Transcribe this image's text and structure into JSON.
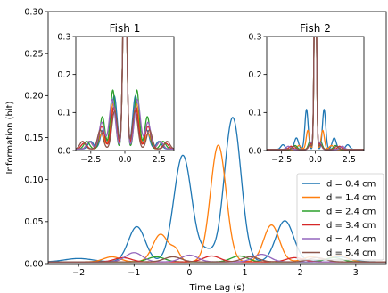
{
  "chart_data": [
    {
      "type": "line",
      "xlabel": "Time Lag (s)",
      "ylabel": "Information (bit)",
      "xlim": [
        -2.55,
        3.55
      ],
      "ylim": [
        0,
        0.3
      ],
      "xticks": [
        -2,
        -1,
        0,
        1,
        2,
        3
      ],
      "xtick_labels": [
        "−2",
        "−1",
        "0",
        "1",
        "2",
        "3"
      ],
      "yticks": [
        0,
        0.05,
        0.1,
        0.15,
        0.2,
        0.25,
        0.3
      ],
      "ytick_labels": [
        "0.00",
        "0.05",
        "0.10",
        "0.15",
        "0.20",
        "0.25",
        "0.30"
      ],
      "legend_position": "lower-right",
      "series": [
        {
          "name": "d = 0.4 cm",
          "color": "#1f77b4",
          "peaks": [
            [
              -0.95,
              0.042,
              0.15
            ],
            [
              -0.12,
              0.127,
              0.16
            ],
            [
              0.78,
              0.172,
              0.15
            ],
            [
              1.72,
              0.049,
              0.16
            ],
            [
              0.32,
              0.012,
              0.12
            ],
            [
              -2.0,
              0.004,
              0.25
            ],
            [
              2.7,
              0.006,
              0.2
            ]
          ]
        },
        {
          "name": "d = 1.4 cm",
          "color": "#ff7f0e",
          "peaks": [
            [
              -0.52,
              0.033,
              0.14
            ],
            [
              -0.25,
              0.012,
              0.08
            ],
            [
              0.52,
              0.139,
              0.14
            ],
            [
              1.48,
              0.044,
              0.14
            ],
            [
              -1.4,
              0.006,
              0.15
            ],
            [
              2.2,
              0.006,
              0.15
            ],
            [
              2.7,
              0.008,
              0.15
            ]
          ]
        },
        {
          "name": "d = 2.4 cm",
          "color": "#2ca02c",
          "peaks": [
            [
              -0.6,
              0.006,
              0.15
            ],
            [
              0.9,
              0.007,
              0.15
            ],
            [
              2.6,
              0.005,
              0.15
            ]
          ]
        },
        {
          "name": "d = 3.4 cm",
          "color": "#d62728",
          "peaks": [
            [
              -1.2,
              0.005,
              0.15
            ],
            [
              0.4,
              0.007,
              0.15
            ],
            [
              1.9,
              0.005,
              0.15
            ]
          ]
        },
        {
          "name": "d = 4.4 cm",
          "color": "#9467bd",
          "peaks": [
            [
              -1.0,
              0.011,
              0.15
            ],
            [
              0.0,
              0.008,
              0.15
            ],
            [
              1.3,
              0.009,
              0.15
            ]
          ]
        },
        {
          "name": "d = 5.4 cm",
          "color": "#8c564b",
          "peaks": [
            [
              -0.3,
              0.006,
              0.15
            ],
            [
              1.1,
              0.006,
              0.15
            ],
            [
              2.3,
              0.005,
              0.15
            ]
          ]
        }
      ]
    },
    {
      "type": "line",
      "title": "Fish 1",
      "xlim": [
        -3.6,
        3.6
      ],
      "ylim": [
        0,
        0.3
      ],
      "xticks": [
        -2.5,
        0,
        2.5
      ],
      "xtick_labels": [
        "−2.5",
        "0.0",
        "2.5"
      ],
      "yticks": [
        0,
        0.1,
        0.2,
        0.3
      ],
      "ytick_labels": [
        "0.0",
        "0.1",
        "0.2",
        "0.3"
      ],
      "series": [
        {
          "name": "d = 0.4 cm",
          "color": "#1f77b4",
          "peaks": [
            [
              0,
              0.6,
              0.13
            ],
            [
              -0.78,
              0.14,
              0.2
            ],
            [
              0.78,
              0.14,
              0.2
            ],
            [
              -1.6,
              0.05,
              0.2
            ],
            [
              1.6,
              0.05,
              0.2
            ],
            [
              -2.5,
              0.02,
              0.2
            ],
            [
              2.5,
              0.02,
              0.2
            ]
          ]
        },
        {
          "name": "d = 1.4 cm",
          "color": "#ff7f0e",
          "peaks": [
            [
              0,
              0.6,
              0.13
            ],
            [
              -0.85,
              0.12,
              0.2
            ],
            [
              0.85,
              0.12,
              0.2
            ],
            [
              -1.7,
              0.04,
              0.2
            ],
            [
              1.7,
              0.04,
              0.2
            ],
            [
              -2.6,
              0.02,
              0.2
            ],
            [
              2.6,
              0.02,
              0.2
            ]
          ]
        },
        {
          "name": "d = 2.4 cm",
          "color": "#2ca02c",
          "peaks": [
            [
              0,
              0.6,
              0.13
            ],
            [
              -0.88,
              0.155,
              0.18
            ],
            [
              0.88,
              0.155,
              0.18
            ],
            [
              -1.65,
              0.085,
              0.18
            ],
            [
              1.65,
              0.085,
              0.18
            ],
            [
              -2.8,
              0.02,
              0.2
            ],
            [
              2.8,
              0.02,
              0.2
            ]
          ]
        },
        {
          "name": "d = 3.4 cm",
          "color": "#d62728",
          "peaks": [
            [
              0,
              0.6,
              0.13
            ],
            [
              -0.8,
              0.11,
              0.2
            ],
            [
              0.8,
              0.11,
              0.2
            ],
            [
              -1.7,
              0.06,
              0.2
            ],
            [
              1.7,
              0.06,
              0.2
            ],
            [
              -3.0,
              0.015,
              0.2
            ],
            [
              3.0,
              0.015,
              0.2
            ]
          ]
        },
        {
          "name": "d = 4.4 cm",
          "color": "#9467bd",
          "peaks": [
            [
              0,
              0.6,
              0.13
            ],
            [
              -0.92,
              0.13,
              0.22
            ],
            [
              0.92,
              0.13,
              0.22
            ],
            [
              -1.7,
              0.07,
              0.2
            ],
            [
              1.7,
              0.07,
              0.2
            ],
            [
              -2.6,
              0.02,
              0.2
            ],
            [
              2.6,
              0.02,
              0.2
            ]
          ]
        },
        {
          "name": "d = 5.4 cm",
          "color": "#8c564b",
          "peaks": [
            [
              0,
              0.6,
              0.13
            ],
            [
              -0.75,
              0.1,
              0.2
            ],
            [
              0.75,
              0.1,
              0.2
            ],
            [
              -1.8,
              0.05,
              0.2
            ],
            [
              1.8,
              0.05,
              0.2
            ],
            [
              -3.1,
              0.02,
              0.2
            ],
            [
              3.1,
              0.02,
              0.2
            ]
          ]
        }
      ]
    },
    {
      "type": "line",
      "title": "Fish 2",
      "xlim": [
        -3.6,
        3.6
      ],
      "ylim": [
        0,
        0.3
      ],
      "xticks": [
        -2.5,
        0,
        2.5
      ],
      "xtick_labels": [
        "−2.5",
        "0.0",
        "2.5"
      ],
      "yticks": [
        0,
        0.1,
        0.2,
        0.3
      ],
      "ytick_labels": [
        "0.0",
        "0.1",
        "0.2",
        "0.3"
      ],
      "series": [
        {
          "name": "d = 0.4 cm",
          "color": "#1f77b4",
          "peaks": [
            [
              0,
              0.6,
              0.08
            ],
            [
              -0.65,
              0.105,
              0.12
            ],
            [
              0.65,
              0.105,
              0.12
            ],
            [
              -1.4,
              0.03,
              0.15
            ],
            [
              1.4,
              0.03,
              0.15
            ],
            [
              -2.4,
              0.012,
              0.15
            ],
            [
              2.4,
              0.012,
              0.15
            ]
          ]
        },
        {
          "name": "d = 1.4 cm",
          "color": "#ff7f0e",
          "peaks": [
            [
              0,
              0.6,
              0.08
            ],
            [
              -0.55,
              0.05,
              0.12
            ],
            [
              0.55,
              0.05,
              0.12
            ],
            [
              -1.2,
              0.01,
              0.15
            ],
            [
              1.2,
              0.01,
              0.15
            ]
          ]
        },
        {
          "name": "d = 2.4 cm",
          "color": "#2ca02c",
          "peaks": [
            [
              0,
              0.6,
              0.08
            ],
            [
              -0.4,
              0.02,
              0.12
            ],
            [
              0.4,
              0.02,
              0.12
            ],
            [
              -1.5,
              0.01,
              0.15
            ],
            [
              1.5,
              0.01,
              0.15
            ]
          ]
        },
        {
          "name": "d = 3.4 cm",
          "color": "#d62728",
          "peaks": [
            [
              0,
              0.6,
              0.08
            ],
            [
              -0.35,
              0.015,
              0.12
            ],
            [
              0.35,
              0.015,
              0.12
            ],
            [
              -1.8,
              0.008,
              0.15
            ],
            [
              1.8,
              0.008,
              0.15
            ]
          ]
        },
        {
          "name": "d = 4.4 cm",
          "color": "#9467bd",
          "peaks": [
            [
              0,
              0.6,
              0.08
            ],
            [
              -0.35,
              0.018,
              0.12
            ],
            [
              0.35,
              0.018,
              0.12
            ],
            [
              -2.0,
              0.008,
              0.15
            ],
            [
              2.0,
              0.008,
              0.15
            ]
          ]
        },
        {
          "name": "d = 5.4 cm",
          "color": "#8c564b",
          "peaks": [
            [
              0,
              0.6,
              0.08
            ],
            [
              -0.4,
              0.012,
              0.12
            ],
            [
              0.4,
              0.012,
              0.12
            ],
            [
              -1.6,
              0.008,
              0.15
            ],
            [
              1.6,
              0.008,
              0.15
            ]
          ]
        }
      ]
    }
  ]
}
